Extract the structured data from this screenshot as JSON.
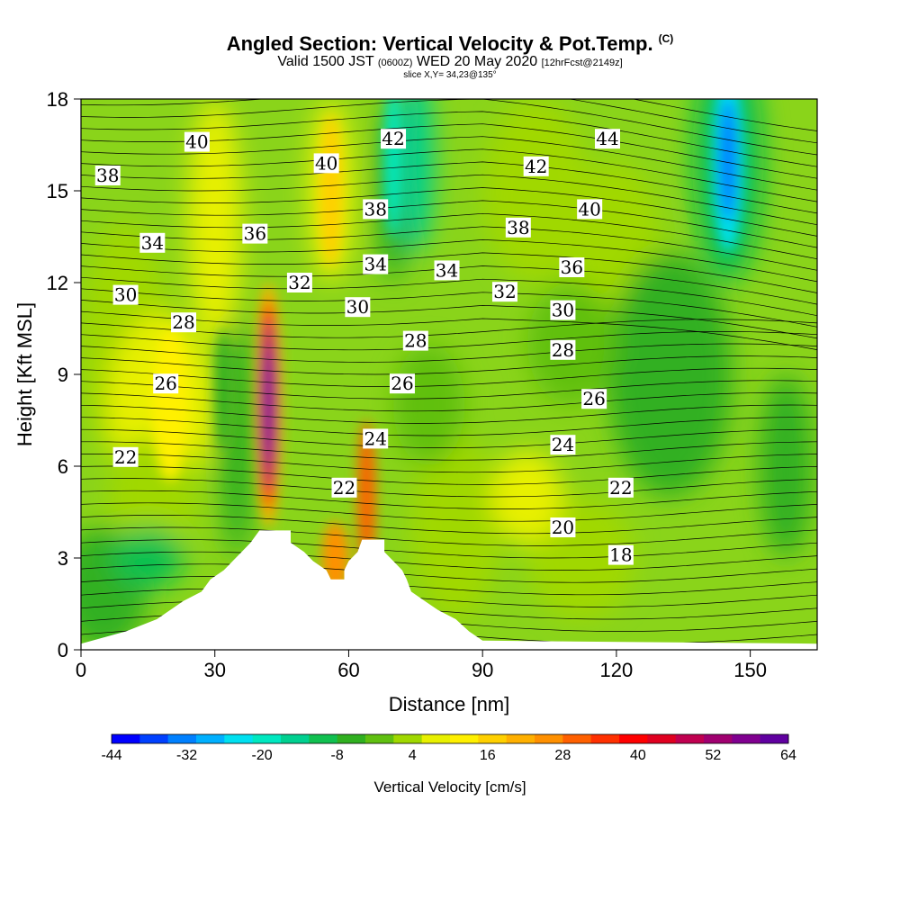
{
  "title": {
    "main": "Angled Section: Vertical Velocity & Pot.Temp.",
    "main_unit": "(C)",
    "valid_prefix": "Valid 1500 JST",
    "valid_utc": "(0600Z)",
    "valid_date": "WED 20 May 2020",
    "forecast": "[12hrFcst@2149z]",
    "slice": "slice X,Y= 34,23@135°"
  },
  "chart_data": {
    "type": "heatmap",
    "xlabel": "Distance [nm]",
    "ylabel": "Height [Kft MSL]",
    "xlim": [
      0,
      165
    ],
    "ylim": [
      0,
      18
    ],
    "xticks": [
      0,
      30,
      60,
      90,
      120,
      150
    ],
    "yticks": [
      0,
      3,
      6,
      9,
      12,
      15,
      18
    ],
    "colorbar": {
      "label": "Vertical Velocity [cm/s]",
      "min": -44,
      "max": 64,
      "tick_labels": [
        "-44",
        "-32",
        "-20",
        "-8",
        "4",
        "16",
        "28",
        "40",
        "52",
        "64"
      ],
      "colors": [
        "#0000ff",
        "#0040ff",
        "#0080ff",
        "#00b0ff",
        "#00e0f0",
        "#00e8c0",
        "#00d090",
        "#10c050",
        "#30b020",
        "#60c010",
        "#a0d800",
        "#e8f000",
        "#fff000",
        "#ffd000",
        "#ffb000",
        "#ff9000",
        "#ff6000",
        "#ff3000",
        "#ff0000",
        "#e00020",
        "#c00050",
        "#a00070",
        "#800090",
        "#6000a0"
      ]
    },
    "updraft_cores": [
      {
        "x_nm": 42,
        "z_kft": 8,
        "w_cm_s": 64
      },
      {
        "x_nm": 20,
        "z_kft": 8,
        "w_cm_s": 20
      },
      {
        "x_nm": 56,
        "z_kft": 15,
        "w_cm_s": 16
      },
      {
        "x_nm": 64,
        "z_kft": 5,
        "w_cm_s": 28
      },
      {
        "x_nm": 57,
        "z_kft": 3,
        "w_cm_s": 25
      }
    ],
    "downdraft_cores": [
      {
        "x_nm": 145,
        "z_kft": 16,
        "w_cm_s": -26
      },
      {
        "x_nm": 70,
        "z_kft": 16,
        "w_cm_s": -18
      },
      {
        "x_nm": 32,
        "z_kft": 8.5,
        "w_cm_s": -8
      },
      {
        "x_nm": 130,
        "z_kft": 9,
        "w_cm_s": -6
      }
    ],
    "terrain_kft": [
      [
        0,
        0.2
      ],
      [
        10,
        0.6
      ],
      [
        17,
        1.0
      ],
      [
        20,
        1.3
      ],
      [
        23,
        1.6
      ],
      [
        27,
        1.9
      ],
      [
        29,
        2.3
      ],
      [
        32,
        2.6
      ],
      [
        34,
        2.9
      ],
      [
        36,
        3.2
      ],
      [
        38,
        3.5
      ],
      [
        40,
        3.9
      ],
      [
        47,
        3.9
      ],
      [
        47,
        3.5
      ],
      [
        50,
        3.2
      ],
      [
        52,
        2.9
      ],
      [
        55,
        2.6
      ],
      [
        56,
        2.3
      ],
      [
        59,
        2.3
      ],
      [
        59,
        2.6
      ],
      [
        60,
        2.9
      ],
      [
        62,
        3.2
      ],
      [
        63,
        3.6
      ],
      [
        68,
        3.6
      ],
      [
        68,
        3.2
      ],
      [
        70,
        2.9
      ],
      [
        72,
        2.6
      ],
      [
        73,
        2.3
      ],
      [
        74,
        1.9
      ],
      [
        77,
        1.6
      ],
      [
        80,
        1.3
      ],
      [
        84,
        1.0
      ],
      [
        87,
        0.6
      ],
      [
        90,
        0.3
      ],
      [
        165,
        0.2
      ]
    ],
    "theta_labels": [
      {
        "text": "40",
        "x_nm": 26,
        "z_kft": 16.6
      },
      {
        "text": "38",
        "x_nm": 6,
        "z_kft": 15.5
      },
      {
        "text": "34",
        "x_nm": 16,
        "z_kft": 13.3
      },
      {
        "text": "30",
        "x_nm": 10,
        "z_kft": 11.6
      },
      {
        "text": "28",
        "x_nm": 23,
        "z_kft": 10.7
      },
      {
        "text": "26",
        "x_nm": 19,
        "z_kft": 8.7
      },
      {
        "text": "22",
        "x_nm": 10,
        "z_kft": 6.3
      },
      {
        "text": "36",
        "x_nm": 39,
        "z_kft": 13.6
      },
      {
        "text": "32",
        "x_nm": 49,
        "z_kft": 12.0
      },
      {
        "text": "40",
        "x_nm": 55,
        "z_kft": 15.9
      },
      {
        "text": "42",
        "x_nm": 70,
        "z_kft": 16.7
      },
      {
        "text": "38",
        "x_nm": 66,
        "z_kft": 14.4
      },
      {
        "text": "34",
        "x_nm": 66,
        "z_kft": 12.6
      },
      {
        "text": "30",
        "x_nm": 62,
        "z_kft": 11.2
      },
      {
        "text": "34",
        "x_nm": 82,
        "z_kft": 12.4
      },
      {
        "text": "28",
        "x_nm": 75,
        "z_kft": 10.1
      },
      {
        "text": "26",
        "x_nm": 72,
        "z_kft": 8.7
      },
      {
        "text": "24",
        "x_nm": 66,
        "z_kft": 6.9
      },
      {
        "text": "22",
        "x_nm": 59,
        "z_kft": 5.3
      },
      {
        "text": "44",
        "x_nm": 118,
        "z_kft": 16.7
      },
      {
        "text": "42",
        "x_nm": 102,
        "z_kft": 15.8
      },
      {
        "text": "40",
        "x_nm": 114,
        "z_kft": 14.4
      },
      {
        "text": "38",
        "x_nm": 98,
        "z_kft": 13.8
      },
      {
        "text": "36",
        "x_nm": 110,
        "z_kft": 12.5
      },
      {
        "text": "32",
        "x_nm": 95,
        "z_kft": 11.7
      },
      {
        "text": "30",
        "x_nm": 108,
        "z_kft": 11.1
      },
      {
        "text": "28",
        "x_nm": 108,
        "z_kft": 9.8
      },
      {
        "text": "26",
        "x_nm": 115,
        "z_kft": 8.2
      },
      {
        "text": "24",
        "x_nm": 108,
        "z_kft": 6.7
      },
      {
        "text": "22",
        "x_nm": 121,
        "z_kft": 5.3
      },
      {
        "text": "20",
        "x_nm": 108,
        "z_kft": 4.0
      },
      {
        "text": "18",
        "x_nm": 121,
        "z_kft": 3.1
      }
    ]
  }
}
